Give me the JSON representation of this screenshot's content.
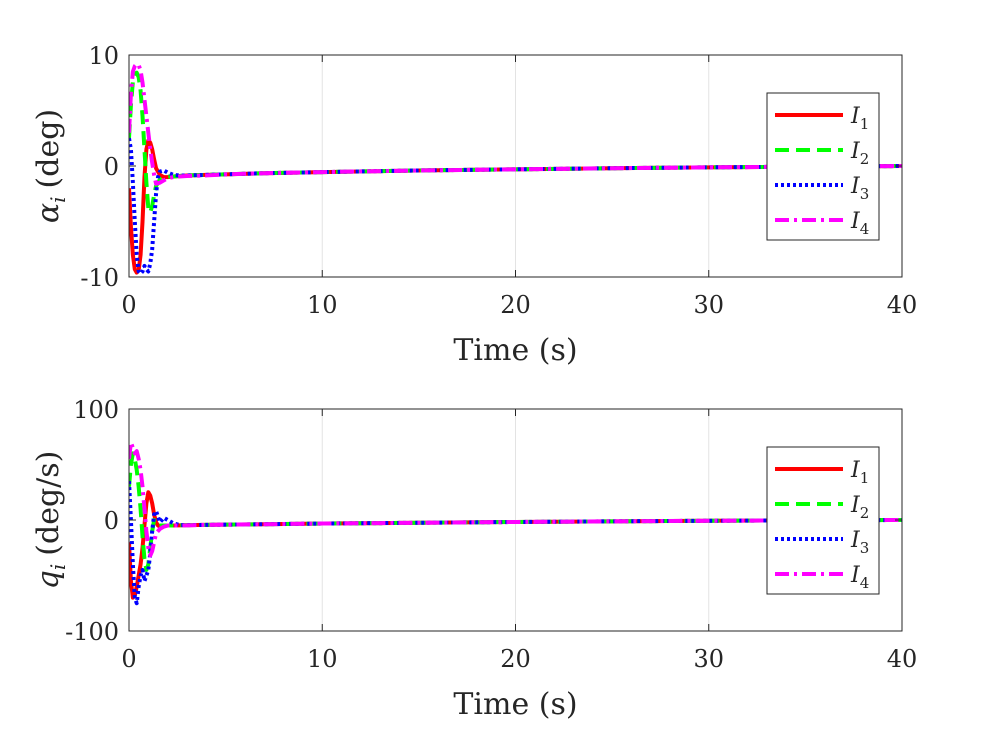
{
  "chart_data": [
    {
      "type": "line",
      "name": "alpha",
      "xlabel": "Time (s)",
      "ylabel_symbol": "α",
      "ylabel_sub": "i",
      "ylabel_unit": "(deg)",
      "xlim": [
        0,
        40
      ],
      "ylim": [
        -10,
        10
      ],
      "xticks": [
        0,
        10,
        20,
        30,
        40
      ],
      "yticks": [
        -10,
        0,
        10
      ],
      "ytick_labels": [
        "-10",
        "0",
        "10"
      ],
      "grid": "vertical",
      "legend_position": "right",
      "series": [
        {
          "name": "I",
          "sub": "1",
          "color": "#ff0000",
          "dash": "solid",
          "x": [
            0,
            0.1,
            0.2,
            0.3,
            0.4,
            0.5,
            0.6,
            0.7,
            0.8,
            0.9,
            1.0,
            1.1,
            1.2,
            1.3,
            1.4,
            1.6,
            1.8,
            2.0,
            2.3,
            2.6,
            3,
            4,
            5,
            7,
            10,
            15,
            20,
            25,
            30,
            35,
            40
          ],
          "y": [
            -2,
            -5.5,
            -8,
            -9.3,
            -9.6,
            -9.4,
            -8,
            -5,
            -1,
            1.5,
            2.3,
            2.1,
            1.5,
            0.6,
            -0.2,
            -0.8,
            -1.0,
            -1.0,
            -0.95,
            -0.9,
            -0.85,
            -0.8,
            -0.75,
            -0.65,
            -0.55,
            -0.4,
            -0.3,
            -0.2,
            -0.12,
            -0.06,
            0
          ]
        },
        {
          "name": "I",
          "sub": "2",
          "color": "#00ff00",
          "dash": "dashed",
          "x": [
            0,
            0.1,
            0.2,
            0.3,
            0.4,
            0.5,
            0.6,
            0.7,
            0.8,
            0.9,
            1.0,
            1.1,
            1.2,
            1.3,
            1.4,
            1.6,
            1.8,
            2.0,
            2.3,
            2.6,
            3,
            4,
            5,
            7,
            10,
            15,
            20,
            25,
            30,
            35,
            40
          ],
          "y": [
            2.5,
            5.5,
            7.6,
            8.3,
            8.4,
            8.0,
            6.8,
            4.5,
            1.5,
            -1.5,
            -3.8,
            -4.2,
            -3.6,
            -2.6,
            -1.8,
            -1.2,
            -1.0,
            -0.95,
            -0.95,
            -0.9,
            -0.85,
            -0.8,
            -0.75,
            -0.65,
            -0.55,
            -0.4,
            -0.3,
            -0.2,
            -0.12,
            -0.06,
            0
          ]
        },
        {
          "name": "I",
          "sub": "3",
          "color": "#0000ff",
          "dash": "dotted",
          "x": [
            0,
            0.1,
            0.2,
            0.3,
            0.4,
            0.5,
            0.6,
            0.7,
            0.8,
            0.9,
            1.0,
            1.1,
            1.2,
            1.3,
            1.4,
            1.5,
            1.6,
            1.8,
            2.0,
            2.3,
            2.6,
            3,
            4,
            5,
            7,
            10,
            15,
            20,
            25,
            30,
            35,
            40
          ],
          "y": [
            2.5,
            1.5,
            -1.5,
            -5,
            -8,
            -9.5,
            -9.7,
            -9.5,
            -9,
            -9.3,
            -9.5,
            -8.8,
            -7.5,
            -5,
            -2.5,
            -1,
            -0.5,
            -0.4,
            -0.6,
            -0.8,
            -0.85,
            -0.85,
            -0.8,
            -0.75,
            -0.65,
            -0.55,
            -0.4,
            -0.3,
            -0.2,
            -0.12,
            -0.06,
            0
          ]
        },
        {
          "name": "I",
          "sub": "4",
          "color": "#ff00ff",
          "dash": "dashdot",
          "x": [
            0,
            0.1,
            0.2,
            0.3,
            0.4,
            0.5,
            0.6,
            0.7,
            0.8,
            0.9,
            1.0,
            1.1,
            1.2,
            1.3,
            1.4,
            1.6,
            1.8,
            2.0,
            2.3,
            2.6,
            3,
            4,
            5,
            7,
            10,
            15,
            20,
            25,
            30,
            35,
            40
          ],
          "y": [
            3,
            6.5,
            8.5,
            9.0,
            9.2,
            9.1,
            8.6,
            7.5,
            6,
            4.5,
            3,
            1.5,
            0.3,
            -0.8,
            -1.6,
            -1.5,
            -1.3,
            -1.1,
            -1.0,
            -0.95,
            -0.9,
            -0.85,
            -0.75,
            -0.65,
            -0.55,
            -0.4,
            -0.3,
            -0.2,
            -0.12,
            -0.06,
            0
          ]
        }
      ]
    },
    {
      "type": "line",
      "name": "q",
      "xlabel": "Time (s)",
      "ylabel_symbol": "q",
      "ylabel_sub": "i",
      "ylabel_unit": "(deg/s)",
      "xlim": [
        0,
        40
      ],
      "ylim": [
        -100,
        100
      ],
      "xticks": [
        0,
        10,
        20,
        30,
        40
      ],
      "yticks": [
        -100,
        0,
        100
      ],
      "ytick_labels": [
        "-100",
        "0",
        "100"
      ],
      "grid": "vertical",
      "legend_position": "right",
      "series": [
        {
          "name": "I",
          "sub": "1",
          "color": "#ff0000",
          "dash": "solid",
          "x": [
            0,
            0.1,
            0.2,
            0.3,
            0.4,
            0.5,
            0.6,
            0.7,
            0.8,
            0.9,
            1.0,
            1.1,
            1.2,
            1.3,
            1.4,
            1.5,
            1.6,
            1.8,
            2.0,
            2.3,
            2.6,
            3,
            4,
            5,
            7,
            10,
            15,
            20,
            25,
            30,
            35,
            40
          ],
          "y": [
            -20,
            -55,
            -70,
            -68,
            -60,
            -50,
            -40,
            -25,
            -5,
            15,
            25,
            22,
            15,
            5,
            -2,
            -5,
            -6,
            -5,
            -5,
            -5,
            -4.8,
            -4.6,
            -4.4,
            -4.2,
            -3.8,
            -3.2,
            -2.5,
            -1.8,
            -1.2,
            -0.7,
            -0.3,
            0
          ]
        },
        {
          "name": "I",
          "sub": "2",
          "color": "#00ff00",
          "dash": "dashed",
          "x": [
            0,
            0.1,
            0.2,
            0.3,
            0.4,
            0.5,
            0.6,
            0.7,
            0.8,
            0.9,
            1.0,
            1.1,
            1.2,
            1.3,
            1.4,
            1.5,
            1.6,
            1.8,
            2.0,
            2.3,
            2.6,
            3,
            4,
            5,
            7,
            10,
            15,
            20,
            25,
            30,
            35,
            40
          ],
          "y": [
            30,
            50,
            60,
            55,
            45,
            30,
            10,
            -15,
            -35,
            -45,
            -40,
            -25,
            -10,
            0,
            -3,
            -5,
            -5,
            -5,
            -5,
            -5,
            -4.8,
            -4.6,
            -4.4,
            -4.2,
            -3.8,
            -3.2,
            -2.5,
            -1.8,
            -1.2,
            -0.7,
            -0.3,
            0
          ]
        },
        {
          "name": "I",
          "sub": "3",
          "color": "#0000ff",
          "dash": "dotted",
          "x": [
            0,
            0.1,
            0.2,
            0.3,
            0.4,
            0.5,
            0.6,
            0.7,
            0.8,
            0.9,
            1.0,
            1.1,
            1.2,
            1.3,
            1.4,
            1.5,
            1.6,
            1.8,
            2.0,
            2.3,
            2.6,
            3,
            4,
            5,
            7,
            10,
            15,
            20,
            25,
            30,
            35,
            40
          ],
          "y": [
            35,
            0,
            -40,
            -70,
            -75,
            -60,
            -50,
            -45,
            -55,
            -50,
            -45,
            -30,
            -10,
            5,
            8,
            3,
            -2,
            2,
            0,
            -3,
            -4.5,
            -4.6,
            -4.4,
            -4.2,
            -3.8,
            -3.2,
            -2.5,
            -1.8,
            -1.2,
            -0.7,
            -0.3,
            0
          ]
        },
        {
          "name": "I",
          "sub": "4",
          "color": "#ff00ff",
          "dash": "dashdot",
          "x": [
            0,
            0.1,
            0.2,
            0.3,
            0.4,
            0.5,
            0.6,
            0.7,
            0.8,
            0.9,
            1.0,
            1.1,
            1.2,
            1.3,
            1.4,
            1.6,
            1.8,
            2.0,
            2.3,
            2.6,
            3,
            4,
            5,
            7,
            10,
            15,
            20,
            25,
            30,
            35,
            40
          ],
          "y": [
            55,
            70,
            65,
            60,
            62,
            55,
            45,
            30,
            10,
            -10,
            -25,
            -32,
            -28,
            -20,
            -12,
            -8,
            -6,
            -5,
            -5,
            -5,
            -4.8,
            -4.4,
            -4.2,
            -3.8,
            -3.2,
            -2.5,
            -1.8,
            -1.2,
            -0.7,
            -0.3,
            0
          ]
        }
      ]
    }
  ]
}
